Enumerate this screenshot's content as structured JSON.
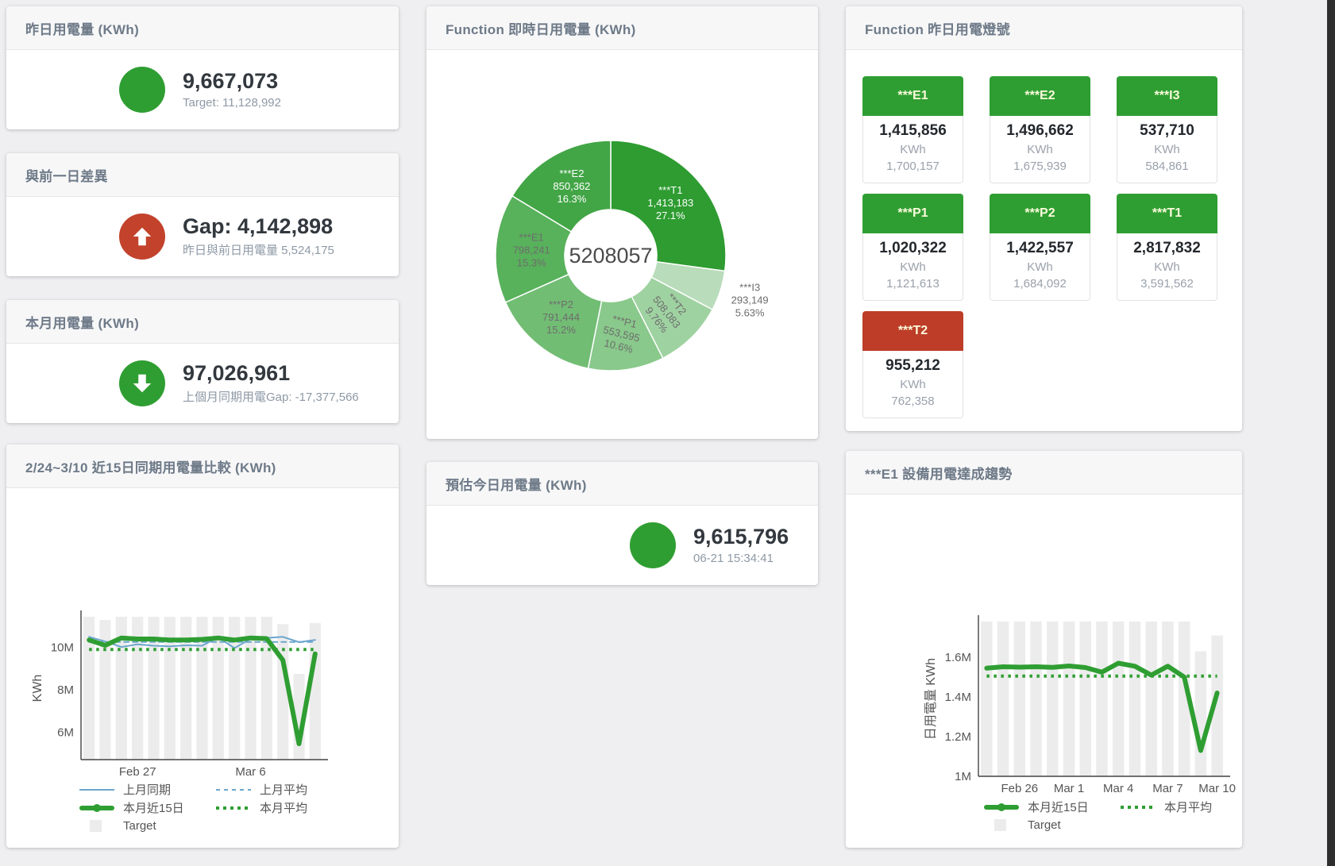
{
  "accent": {
    "green": "#2f9e32",
    "red": "#c2422c",
    "blue": "#6ca6cd",
    "bar_gray": "#ececec"
  },
  "kpi": {
    "yesterday": {
      "title": "昨日用電量 (KWh)",
      "value": "9,667,073",
      "subtitle": "Target: 11,128,992",
      "status": "green"
    },
    "gap": {
      "title": "與前一日差異",
      "value": "Gap: 4,142,898",
      "subtitle": "昨日與前日用電量 5,524,175",
      "status": "red",
      "arrow": "up"
    },
    "month": {
      "title": "本月用電量 (KWh)",
      "value": "97,026,961",
      "subtitle": "上個月同期用電Gap: -17,377,566",
      "status": "green",
      "arrow": "down"
    },
    "forecast": {
      "title": "預估今日用電量 (KWh)",
      "value": "9,615,796",
      "subtitle": "06-21 15:34:41",
      "status": "green"
    }
  },
  "lights": {
    "title": "Function 昨日用電燈號",
    "unit": "KWh",
    "colors": {
      "green": "#2f9e32",
      "red": "#bd3d28"
    },
    "tiles": [
      {
        "label": "***E1",
        "value": "1,415,856",
        "unit": "KWh",
        "target": "1,700,157",
        "status": "green"
      },
      {
        "label": "***E2",
        "value": "1,496,662",
        "unit": "KWh",
        "target": "1,675,939",
        "status": "green"
      },
      {
        "label": "***I3",
        "value": "537,710",
        "unit": "KWh",
        "target": "584,861",
        "status": "green"
      },
      {
        "label": "***P1",
        "value": "1,020,322",
        "unit": "KWh",
        "target": "1,121,613",
        "status": "green"
      },
      {
        "label": "***P2",
        "value": "1,422,557",
        "unit": "KWh",
        "target": "1,684,092",
        "status": "green"
      },
      {
        "label": "***T1",
        "value": "2,817,832",
        "unit": "KWh",
        "target": "3,591,562",
        "status": "green"
      },
      {
        "label": "***T2",
        "value": "955,212",
        "unit": "KWh",
        "target": "762,358",
        "status": "red"
      }
    ]
  },
  "chart_data": [
    {
      "type": "pie",
      "title": "Function 即時日用電量 (KWh)",
      "center_total": "5208057",
      "slices": [
        {
          "name": "***T1",
          "value": 1413183,
          "pct": "27.1%",
          "color": "#2e9c31",
          "label_color": "#ffffff"
        },
        {
          "name": "***I3",
          "value": 293149,
          "pct": "5.63%",
          "color": "#b9dcba",
          "label_color": "#6d6d6d",
          "label_outside": true
        },
        {
          "name": "***T2",
          "value": 508083,
          "pct": "9.76%",
          "color": "#9fd2a1",
          "label_color": "#6d6d6d",
          "label_rotate": 52
        },
        {
          "name": "***P1",
          "value": 553595,
          "pct": "10.6%",
          "color": "#89c98b",
          "label_color": "#6d6d6d",
          "label_rotate": 14
        },
        {
          "name": "***P2",
          "value": 791444,
          "pct": "15.2%",
          "color": "#72bd74",
          "label_color": "#6d6d6d"
        },
        {
          "name": "***E1",
          "value": 798241,
          "pct": "15.3%",
          "color": "#58b15b",
          "label_color": "#6d6d6d"
        },
        {
          "name": "***E2",
          "value": 850362,
          "pct": "16.3%",
          "color": "#42a546",
          "label_color": "#ffffff"
        }
      ]
    },
    {
      "type": "line+bar",
      "title": "2/24~3/10 近15日同期用電量比較 (KWh)",
      "ylabel": "KWh",
      "unit": "M KWh",
      "ylim": [
        4.7,
        11.45
      ],
      "yticks": [
        {
          "v": 6,
          "label": "6M"
        },
        {
          "v": 8,
          "label": "8M"
        },
        {
          "v": 10,
          "label": "10M"
        }
      ],
      "x_count": 15,
      "xticks": [
        {
          "i": 3,
          "label": "Feb 27"
        },
        {
          "i": 10,
          "label": "Mar 6"
        }
      ],
      "bar_color": "#ececec",
      "target_bars": [
        11.45,
        11.3,
        11.5,
        11.48,
        11.48,
        11.45,
        11.5,
        11.45,
        11.45,
        11.45,
        11.5,
        11.45,
        11.1,
        8.75,
        11.15
      ],
      "series": [
        {
          "name": "上月同期",
          "style": "line",
          "color": "#6ca6cd",
          "width": 2,
          "values": [
            10.5,
            10.28,
            10.02,
            10.15,
            10.08,
            10.05,
            10.1,
            10.08,
            10.48,
            9.97,
            10.4,
            10.45,
            10.5,
            10.25,
            10.35
          ]
        },
        {
          "name": "上月平均",
          "style": "dashed",
          "color": "#6ca6cd",
          "width": 2,
          "value": 10.26
        },
        {
          "name": "本月近15日",
          "style": "line",
          "color": "#2f9e32",
          "width": 6,
          "values": [
            10.35,
            10.1,
            10.45,
            10.4,
            10.4,
            10.35,
            10.35,
            10.38,
            10.45,
            10.35,
            10.45,
            10.42,
            9.4,
            5.45,
            9.7
          ]
        },
        {
          "name": "本月平均",
          "style": "dotted",
          "color": "#2f9e32",
          "width": 4,
          "value": 9.9
        },
        {
          "name": "Target",
          "style": "bar",
          "color": "#ececec"
        }
      ],
      "legend": [
        {
          "label": "上月同期",
          "swatch": "line-blue"
        },
        {
          "label": "上月平均",
          "swatch": "dash-blue"
        },
        {
          "label": "本月近15日",
          "swatch": "line-green-thick"
        },
        {
          "label": "本月平均",
          "swatch": "dot-green"
        },
        {
          "label": "Target",
          "swatch": "square-gray"
        }
      ]
    },
    {
      "type": "line+bar",
      "title": "***E1 設備用電達成趨勢",
      "ylabel": "日用電量 KWh",
      "unit": "M KWh",
      "ylim": [
        1.0,
        1.78
      ],
      "yticks": [
        {
          "v": 1,
          "label": "1M"
        },
        {
          "v": 1.2,
          "label": "1.2M"
        },
        {
          "v": 1.4,
          "label": "1.4M"
        },
        {
          "v": 1.6,
          "label": "1.6M"
        }
      ],
      "x_count": 15,
      "xticks": [
        {
          "i": 2,
          "label": "Feb 26"
        },
        {
          "i": 5,
          "label": "Mar 1"
        },
        {
          "i": 8,
          "label": "Mar 4"
        },
        {
          "i": 11,
          "label": "Mar 7"
        },
        {
          "i": 14,
          "label": "Mar 10"
        }
      ],
      "bar_color": "#ececec",
      "target_bars": [
        1.78,
        1.78,
        1.78,
        1.78,
        1.78,
        1.78,
        1.78,
        1.78,
        1.78,
        1.78,
        1.78,
        1.78,
        1.78,
        1.63,
        1.71
      ],
      "series": [
        {
          "name": "本月近15日",
          "style": "line",
          "color": "#2f9e32",
          "width": 6,
          "values": [
            1.545,
            1.552,
            1.55,
            1.552,
            1.549,
            1.556,
            1.548,
            1.525,
            1.57,
            1.555,
            1.51,
            1.555,
            1.5,
            1.13,
            1.42
          ]
        },
        {
          "name": "本月平均",
          "style": "dotted",
          "color": "#2f9e32",
          "width": 4,
          "value": 1.505
        },
        {
          "name": "Target",
          "style": "bar",
          "color": "#ececec"
        }
      ],
      "legend": [
        {
          "label": "本月近15日",
          "swatch": "line-green-thick"
        },
        {
          "label": "本月平均",
          "swatch": "dot-green"
        },
        {
          "label": "Target",
          "swatch": "square-gray"
        }
      ]
    }
  ]
}
